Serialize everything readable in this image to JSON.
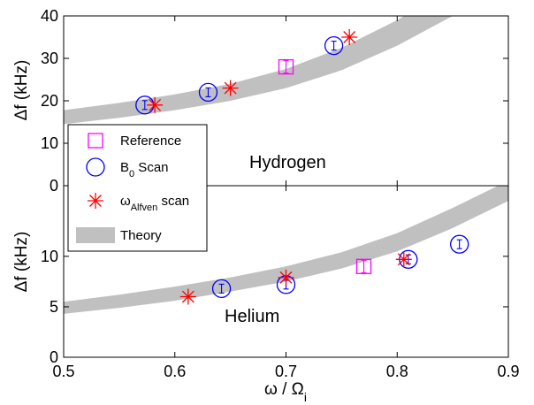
{
  "chart_data": [
    {
      "type": "scatter",
      "panel": "top",
      "label": "Hydrogen",
      "xlim": [
        0.5,
        0.9
      ],
      "ylim": [
        0,
        40
      ],
      "yticks": [
        0,
        10,
        20,
        30,
        40
      ],
      "ylabel": "Δf (kHz)",
      "theory_band": {
        "x": [
          0.5,
          0.55,
          0.6,
          0.65,
          0.7,
          0.75,
          0.8,
          0.85,
          0.9
        ],
        "lower": [
          14.5,
          16.0,
          17.8,
          20.0,
          23.0,
          27.2,
          33.0,
          40.0,
          48.0
        ],
        "upper": [
          17.8,
          19.5,
          21.5,
          24.0,
          27.5,
          32.5,
          39.0,
          47.0,
          56.0
        ]
      },
      "series": [
        {
          "name": "Reference",
          "marker": "square",
          "color": "#ff00ff",
          "x": [
            0.7
          ],
          "y": [
            28
          ]
        },
        {
          "name": "B0 Scan",
          "marker": "circle",
          "color": "#0000ff",
          "x": [
            0.573,
            0.63,
            0.743
          ],
          "y": [
            19,
            22,
            33
          ]
        },
        {
          "name": "ωAlfven scan",
          "marker": "star",
          "color": "#ff0000",
          "x": [
            0.582,
            0.65,
            0.757
          ],
          "y": [
            19,
            23,
            35
          ]
        }
      ]
    },
    {
      "type": "scatter",
      "panel": "bottom",
      "label": "Helium",
      "xlim": [
        0.5,
        0.9
      ],
      "ylim": [
        0,
        17
      ],
      "yticks": [
        0,
        5,
        10
      ],
      "xticks": [
        0.5,
        0.6,
        0.7,
        0.8,
        0.9
      ],
      "xlabel": "ω / Ω",
      "xlabel_sub": "i",
      "ylabel": "Δf (kHz)",
      "theory_band": {
        "x": [
          0.5,
          0.55,
          0.6,
          0.65,
          0.7,
          0.75,
          0.8,
          0.85,
          0.9
        ],
        "lower": [
          4.3,
          4.9,
          5.6,
          6.5,
          7.5,
          8.8,
          10.5,
          12.8,
          15.5
        ],
        "upper": [
          5.5,
          6.2,
          7.0,
          7.9,
          9.0,
          10.4,
          12.3,
          14.8,
          17.5
        ]
      },
      "series": [
        {
          "name": "Reference",
          "marker": "square",
          "color": "#ff00ff",
          "x": [
            0.77
          ],
          "y": [
            9
          ]
        },
        {
          "name": "B0 Scan",
          "marker": "circle",
          "color": "#0000ff",
          "x": [
            0.642,
            0.7,
            0.81,
            0.856
          ],
          "y": [
            6.8,
            7.2,
            9.7,
            11.2
          ]
        },
        {
          "name": "ωAlfven scan",
          "marker": "star",
          "color": "#ff0000",
          "x": [
            0.612,
            0.7,
            0.806
          ],
          "y": [
            6,
            7.9,
            9.7
          ]
        }
      ]
    }
  ],
  "legend": {
    "items": [
      {
        "key": "reference",
        "label": "Reference"
      },
      {
        "key": "b0",
        "label": "B",
        "sub": "0",
        "suffix": " Scan"
      },
      {
        "key": "alfven",
        "label": "ω",
        "sub": "Alfven",
        "suffix": " scan"
      },
      {
        "key": "theory",
        "label": "Theory"
      }
    ],
    "placement": "left"
  },
  "colors": {
    "theory_band": "#c0c0c0",
    "reference": "#ff00ff",
    "b0": "#0000ff",
    "alfven": "#ff0000"
  }
}
